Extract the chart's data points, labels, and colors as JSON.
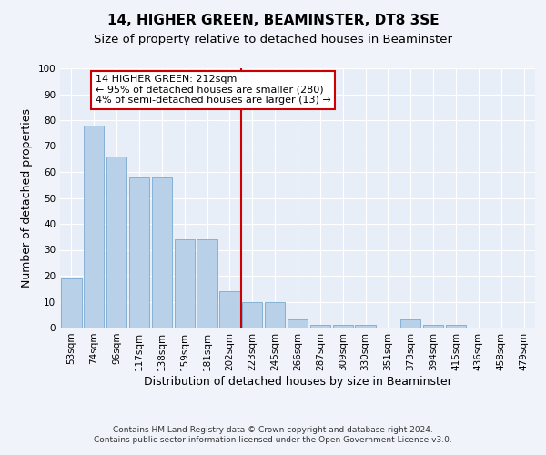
{
  "title": "14, HIGHER GREEN, BEAMINSTER, DT8 3SE",
  "subtitle": "Size of property relative to detached houses in Beaminster",
  "xlabel": "Distribution of detached houses by size in Beaminster",
  "ylabel": "Number of detached properties",
  "categories": [
    "53sqm",
    "74sqm",
    "96sqm",
    "117sqm",
    "138sqm",
    "159sqm",
    "181sqm",
    "202sqm",
    "223sqm",
    "245sqm",
    "266sqm",
    "287sqm",
    "309sqm",
    "330sqm",
    "351sqm",
    "373sqm",
    "394sqm",
    "415sqm",
    "436sqm",
    "458sqm",
    "479sqm"
  ],
  "values": [
    19,
    78,
    66,
    58,
    58,
    34,
    34,
    14,
    10,
    10,
    3,
    1,
    1,
    1,
    0,
    3,
    1,
    1,
    0,
    0,
    0
  ],
  "bar_color": "#b8d0e8",
  "bar_edge_color": "#7aaad0",
  "vline_color": "#cc0000",
  "annotation_text": "14 HIGHER GREEN: 212sqm\n← 95% of detached houses are smaller (280)\n4% of semi-detached houses are larger (13) →",
  "annotation_box_color": "#ffffff",
  "annotation_box_edge_color": "#cc0000",
  "ylim": [
    0,
    100
  ],
  "yticks": [
    0,
    10,
    20,
    30,
    40,
    50,
    60,
    70,
    80,
    90,
    100
  ],
  "background_color": "#e8eef8",
  "grid_color": "#ffffff",
  "footer_line1": "Contains HM Land Registry data © Crown copyright and database right 2024.",
  "footer_line2": "Contains public sector information licensed under the Open Government Licence v3.0.",
  "title_fontsize": 11,
  "subtitle_fontsize": 9.5,
  "xlabel_fontsize": 9,
  "ylabel_fontsize": 9,
  "tick_fontsize": 7.5,
  "footer_fontsize": 6.5,
  "annotation_fontsize": 8
}
